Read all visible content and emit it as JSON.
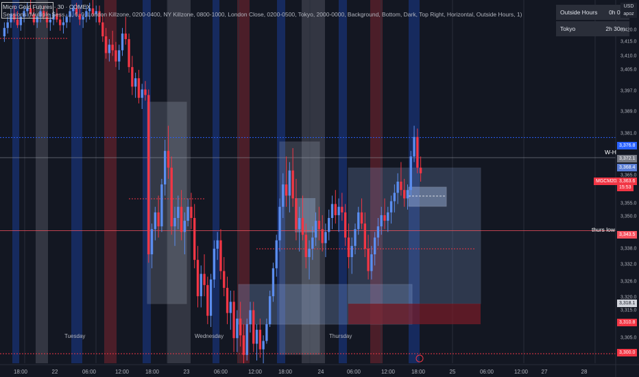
{
  "header": {
    "symbol_title": "Micro Gold Futures · 30 · COMEX",
    "sessions_line": "Sessions (Multiple Sess...), 6, 0, London Killzone, 0200-0400, NY Killzone, 0800-1000, London Close, 0200-0500, Tokyo, 2000-0000, Background, Bottom, Dark, Top Right, Horizontal, Outside Hours, 1)"
  },
  "session_table": [
    {
      "label": "Outside Hours",
      "value": "0h 0m"
    },
    {
      "label": "Tokyo",
      "value": "2h 30m"
    }
  ],
  "price_axis": {
    "currency": "USD",
    "unit": "apoz",
    "ticks": [
      "3,420.0",
      "3,415.0",
      "3,410.0",
      "3,405.0",
      "3,397.0",
      "3,389.0",
      "3,381.0",
      "3,372.1",
      "3,365.0",
      "3,355.0",
      "3,350.0",
      "3,343.0",
      "3,338.0",
      "3,332.0",
      "3,326.0",
      "3,320.0",
      "3,315.0",
      "3,310.0",
      "3,305.0",
      "3,300.0"
    ]
  },
  "price_tags": [
    {
      "text": "3,376.8",
      "bg": "#2962ff",
      "color": "#ffffff"
    },
    {
      "text": "3,372.1",
      "bg": "#787b86",
      "color": "#ffffff"
    },
    {
      "text": "3,368.4",
      "bg": "#5b7ed6",
      "color": "#ffffff"
    },
    {
      "text": "MGCM2025",
      "bg": "#f23645",
      "color": "#ffffff"
    },
    {
      "text": "3,363.6",
      "bg": "#f23645",
      "color": "#ffffff"
    },
    {
      "text": "15:53",
      "bg": "#f23645",
      "color": "#ffffff"
    },
    {
      "text": "3,343.5",
      "bg": "#f7525f",
      "color": "#ffffff"
    },
    {
      "text": "3,318.1",
      "bg": "#d1d4dc",
      "color": "#131722"
    },
    {
      "text": "3,310.8",
      "bg": "#f23645",
      "color": "#ffffff"
    },
    {
      "text": "3,300.0",
      "bg": "#f23645",
      "color": "#ffffff"
    }
  ],
  "line_labels": {
    "weekly_high": "W-H",
    "thurs_low": "thurs low"
  },
  "day_labels": [
    "Tuesday",
    "Wednesday",
    "Thursday"
  ],
  "time_axis": [
    "18:00",
    "22",
    "06:00",
    "12:00",
    "18:00",
    "23",
    "06:00",
    "12:00",
    "18:00",
    "24",
    "06:00",
    "12:00",
    "18:00",
    "25",
    "06:00",
    "12:00",
    "27",
    "28"
  ],
  "colors": {
    "background": "#131722",
    "up_candle": "#5b8def",
    "down_candle": "#f23645",
    "tokyo_band": "#1a3a8f",
    "london_band": "#7a2430",
    "outside_band": "#5a5e6a",
    "zone_fill": "#7f9ccf"
  },
  "chart_data": {
    "type": "candlestick",
    "title": "Micro Gold Futures · 30 · COMEX",
    "ylim": [
      3296,
      3426
    ],
    "xlim": [
      0,
      190
    ],
    "candles": [
      [
        0,
        3413,
        3418,
        3411,
        3416
      ],
      [
        1,
        3416,
        3420,
        3414,
        3418
      ],
      [
        2,
        3418,
        3423,
        3416,
        3421
      ],
      [
        3,
        3421,
        3424,
        3418,
        3419
      ],
      [
        4,
        3419,
        3422,
        3416,
        3417
      ],
      [
        5,
        3417,
        3421,
        3415,
        3420
      ],
      [
        6,
        3420,
        3424,
        3418,
        3422
      ],
      [
        7,
        3422,
        3425,
        3420,
        3423
      ],
      [
        8,
        3423,
        3426,
        3420,
        3421
      ],
      [
        9,
        3421,
        3423,
        3417,
        3418
      ],
      [
        10,
        3418,
        3421,
        3416,
        3420
      ],
      [
        11,
        3420,
        3423,
        3418,
        3422
      ],
      [
        12,
        3422,
        3424,
        3419,
        3420
      ],
      [
        13,
        3420,
        3422,
        3416,
        3418
      ],
      [
        14,
        3418,
        3421,
        3415,
        3419
      ],
      [
        15,
        3419,
        3422,
        3417,
        3421
      ],
      [
        16,
        3421,
        3423,
        3418,
        3419
      ],
      [
        17,
        3419,
        3421,
        3415,
        3417
      ],
      [
        18,
        3417,
        3420,
        3414,
        3418
      ],
      [
        19,
        3418,
        3421,
        3416,
        3420
      ],
      [
        20,
        3420,
        3423,
        3418,
        3422
      ],
      [
        21,
        3422,
        3424,
        3420,
        3423
      ],
      [
        22,
        3423,
        3425,
        3420,
        3421
      ],
      [
        23,
        3421,
        3423,
        3417,
        3419
      ],
      [
        24,
        3419,
        3421,
        3416,
        3420
      ],
      [
        25,
        3420,
        3424,
        3418,
        3422
      ],
      [
        26,
        3422,
        3425,
        3419,
        3423
      ],
      [
        27,
        3423,
        3426,
        3420,
        3421
      ],
      [
        28,
        3421,
        3424,
        3418,
        3422
      ],
      [
        29,
        3422,
        3424,
        3417,
        3418
      ],
      [
        30,
        3418,
        3421,
        3411,
        3413
      ],
      [
        31,
        3413,
        3416,
        3405,
        3407
      ],
      [
        32,
        3407,
        3412,
        3404,
        3410
      ],
      [
        33,
        3410,
        3415,
        3406,
        3408
      ],
      [
        34,
        3408,
        3411,
        3402,
        3404
      ],
      [
        35,
        3404,
        3410,
        3401,
        3408
      ],
      [
        36,
        3408,
        3416,
        3406,
        3414
      ],
      [
        37,
        3414,
        3420,
        3410,
        3412
      ],
      [
        38,
        3412,
        3414,
        3400,
        3402
      ],
      [
        39,
        3402,
        3406,
        3392,
        3395
      ],
      [
        40,
        3395,
        3400,
        3391,
        3398
      ],
      [
        41,
        3398,
        3401,
        3389,
        3391
      ],
      [
        42,
        3391,
        3396,
        3387,
        3394
      ],
      [
        43,
        3394,
        3397,
        3390,
        3392
      ],
      [
        44,
        3392,
        3394,
        3332,
        3335
      ],
      [
        45,
        3335,
        3346,
        3330,
        3344
      ],
      [
        46,
        3344,
        3352,
        3340,
        3350
      ],
      [
        47,
        3350,
        3356,
        3341,
        3345
      ],
      [
        48,
        3345,
        3362,
        3343,
        3360
      ],
      [
        49,
        3360,
        3376,
        3356,
        3372
      ],
      [
        50,
        3372,
        3381,
        3362,
        3366
      ],
      [
        51,
        3366,
        3370,
        3342,
        3345
      ],
      [
        52,
        3345,
        3352,
        3338,
        3348
      ],
      [
        53,
        3348,
        3356,
        3344,
        3352
      ],
      [
        54,
        3352,
        3358,
        3340,
        3343
      ],
      [
        55,
        3343,
        3350,
        3335,
        3347
      ],
      [
        56,
        3347,
        3355,
        3345,
        3352
      ],
      [
        57,
        3352,
        3357,
        3344,
        3348
      ],
      [
        58,
        3348,
        3353,
        3330,
        3333
      ],
      [
        59,
        3333,
        3338,
        3316,
        3320
      ],
      [
        60,
        3320,
        3331,
        3316,
        3328
      ],
      [
        61,
        3328,
        3335,
        3320,
        3324
      ],
      [
        62,
        3324,
        3327,
        3310,
        3313
      ],
      [
        63,
        3313,
        3328,
        3309,
        3326
      ],
      [
        64,
        3326,
        3340,
        3323,
        3337
      ],
      [
        65,
        3337,
        3343,
        3333,
        3340
      ],
      [
        66,
        3340,
        3344,
        3326,
        3329
      ],
      [
        67,
        3329,
        3334,
        3320,
        3323
      ],
      [
        68,
        3323,
        3327,
        3310,
        3314
      ],
      [
        69,
        3314,
        3322,
        3308,
        3318
      ],
      [
        70,
        3318,
        3322,
        3300,
        3305
      ],
      [
        71,
        3305,
        3315,
        3300,
        3312
      ],
      [
        72,
        3312,
        3318,
        3302,
        3306
      ],
      [
        73,
        3306,
        3310,
        3296,
        3299
      ],
      [
        74,
        3299,
        3312,
        3297,
        3310
      ],
      [
        75,
        3310,
        3318,
        3307,
        3315
      ],
      [
        76,
        3315,
        3318,
        3300,
        3303
      ],
      [
        77,
        3303,
        3310,
        3297,
        3308
      ],
      [
        78,
        3308,
        3312,
        3298,
        3301
      ],
      [
        79,
        3301,
        3306,
        3296,
        3304
      ],
      [
        80,
        3304,
        3312,
        3303,
        3310
      ],
      [
        81,
        3310,
        3322,
        3309,
        3320
      ],
      [
        82,
        3320,
        3332,
        3318,
        3330
      ],
      [
        83,
        3330,
        3342,
        3327,
        3340
      ],
      [
        84,
        3340,
        3355,
        3336,
        3352
      ],
      [
        85,
        3352,
        3364,
        3348,
        3360
      ],
      [
        86,
        3360,
        3370,
        3352,
        3356
      ],
      [
        87,
        3356,
        3368,
        3350,
        3365
      ],
      [
        88,
        3365,
        3373,
        3352,
        3355
      ],
      [
        89,
        3355,
        3362,
        3340,
        3344
      ],
      [
        90,
        3344,
        3352,
        3336,
        3348
      ],
      [
        91,
        3348,
        3356,
        3340,
        3342
      ],
      [
        92,
        3342,
        3346,
        3330,
        3334
      ],
      [
        93,
        3334,
        3340,
        3326,
        3337
      ],
      [
        94,
        3337,
        3345,
        3333,
        3341
      ],
      [
        95,
        3341,
        3350,
        3338,
        3347
      ],
      [
        96,
        3347,
        3352,
        3340,
        3344
      ],
      [
        97,
        3344,
        3349,
        3336,
        3339
      ],
      [
        98,
        3339,
        3346,
        3334,
        3343
      ],
      [
        99,
        3343,
        3351,
        3340,
        3348
      ],
      [
        100,
        3348,
        3356,
        3344,
        3353
      ],
      [
        101,
        3353,
        3358,
        3346,
        3349
      ],
      [
        102,
        3349,
        3355,
        3343,
        3352
      ],
      [
        103,
        3352,
        3357,
        3347,
        3350
      ],
      [
        104,
        3350,
        3353,
        3338,
        3341
      ],
      [
        105,
        3341,
        3346,
        3330,
        3334
      ],
      [
        106,
        3334,
        3341,
        3328,
        3338
      ],
      [
        107,
        3338,
        3346,
        3335,
        3344
      ],
      [
        108,
        3344,
        3352,
        3342,
        3350
      ],
      [
        109,
        3350,
        3355,
        3344,
        3346
      ],
      [
        110,
        3346,
        3350,
        3334,
        3337
      ],
      [
        111,
        3337,
        3342,
        3326,
        3329
      ],
      [
        112,
        3329,
        3338,
        3326,
        3335
      ],
      [
        113,
        3335,
        3343,
        3331,
        3341
      ],
      [
        114,
        3341,
        3348,
        3338,
        3345
      ],
      [
        115,
        3345,
        3352,
        3342,
        3349
      ],
      [
        116,
        3349,
        3355,
        3344,
        3347
      ],
      [
        117,
        3347,
        3352,
        3343,
        3350
      ],
      [
        118,
        3350,
        3356,
        3346,
        3354
      ],
      [
        119,
        3354,
        3360,
        3350,
        3357
      ],
      [
        120,
        3357,
        3364,
        3353,
        3361
      ],
      [
        121,
        3361,
        3368,
        3356,
        3358
      ],
      [
        122,
        3358,
        3362,
        3352,
        3355
      ],
      [
        123,
        3355,
        3360,
        3351,
        3358
      ],
      [
        124,
        3358,
        3372,
        3356,
        3370
      ],
      [
        125,
        3370,
        3381,
        3368,
        3377
      ],
      [
        126,
        3377,
        3380,
        3364,
        3366
      ],
      [
        127,
        3366,
        3370,
        3361,
        3364
      ]
    ],
    "horizontal_levels": [
      {
        "label": "W-H",
        "price": 3376.8
      },
      {
        "label": "thurs low",
        "price": 3343.5
      }
    ]
  }
}
